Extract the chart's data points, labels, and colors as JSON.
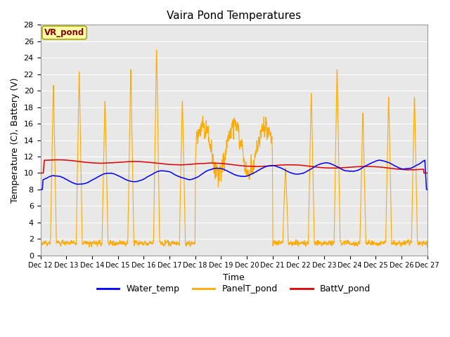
{
  "title": "Vaira Pond Temperatures",
  "ylabel": "Temperature (C), Battery (V)",
  "xlabel": "Time",
  "ylim": [
    0,
    28
  ],
  "yticks": [
    0,
    2,
    4,
    6,
    8,
    10,
    12,
    14,
    16,
    18,
    20,
    22,
    24,
    26,
    28
  ],
  "water_temp_color": "#0000ff",
  "panel_temp_color": "#ffaa00",
  "batt_color": "#dd0000",
  "background_color": "#e8e8e8",
  "plot_bg_color": "#e8e8e8",
  "title_fontsize": 11,
  "label_fontsize": 9,
  "tick_fontsize": 8,
  "site_label": "VR_pond",
  "site_label_color": "#880000",
  "site_label_bg": "#ffffaa",
  "site_label_edge": "#aaaa00",
  "legend_labels": [
    "Water_temp",
    "PanelT_pond",
    "BattV_pond"
  ],
  "legend_colors": [
    "#0000ff",
    "#ffaa00",
    "#dd0000"
  ],
  "grid_color": "#ffffff",
  "spine_color": "#999999"
}
